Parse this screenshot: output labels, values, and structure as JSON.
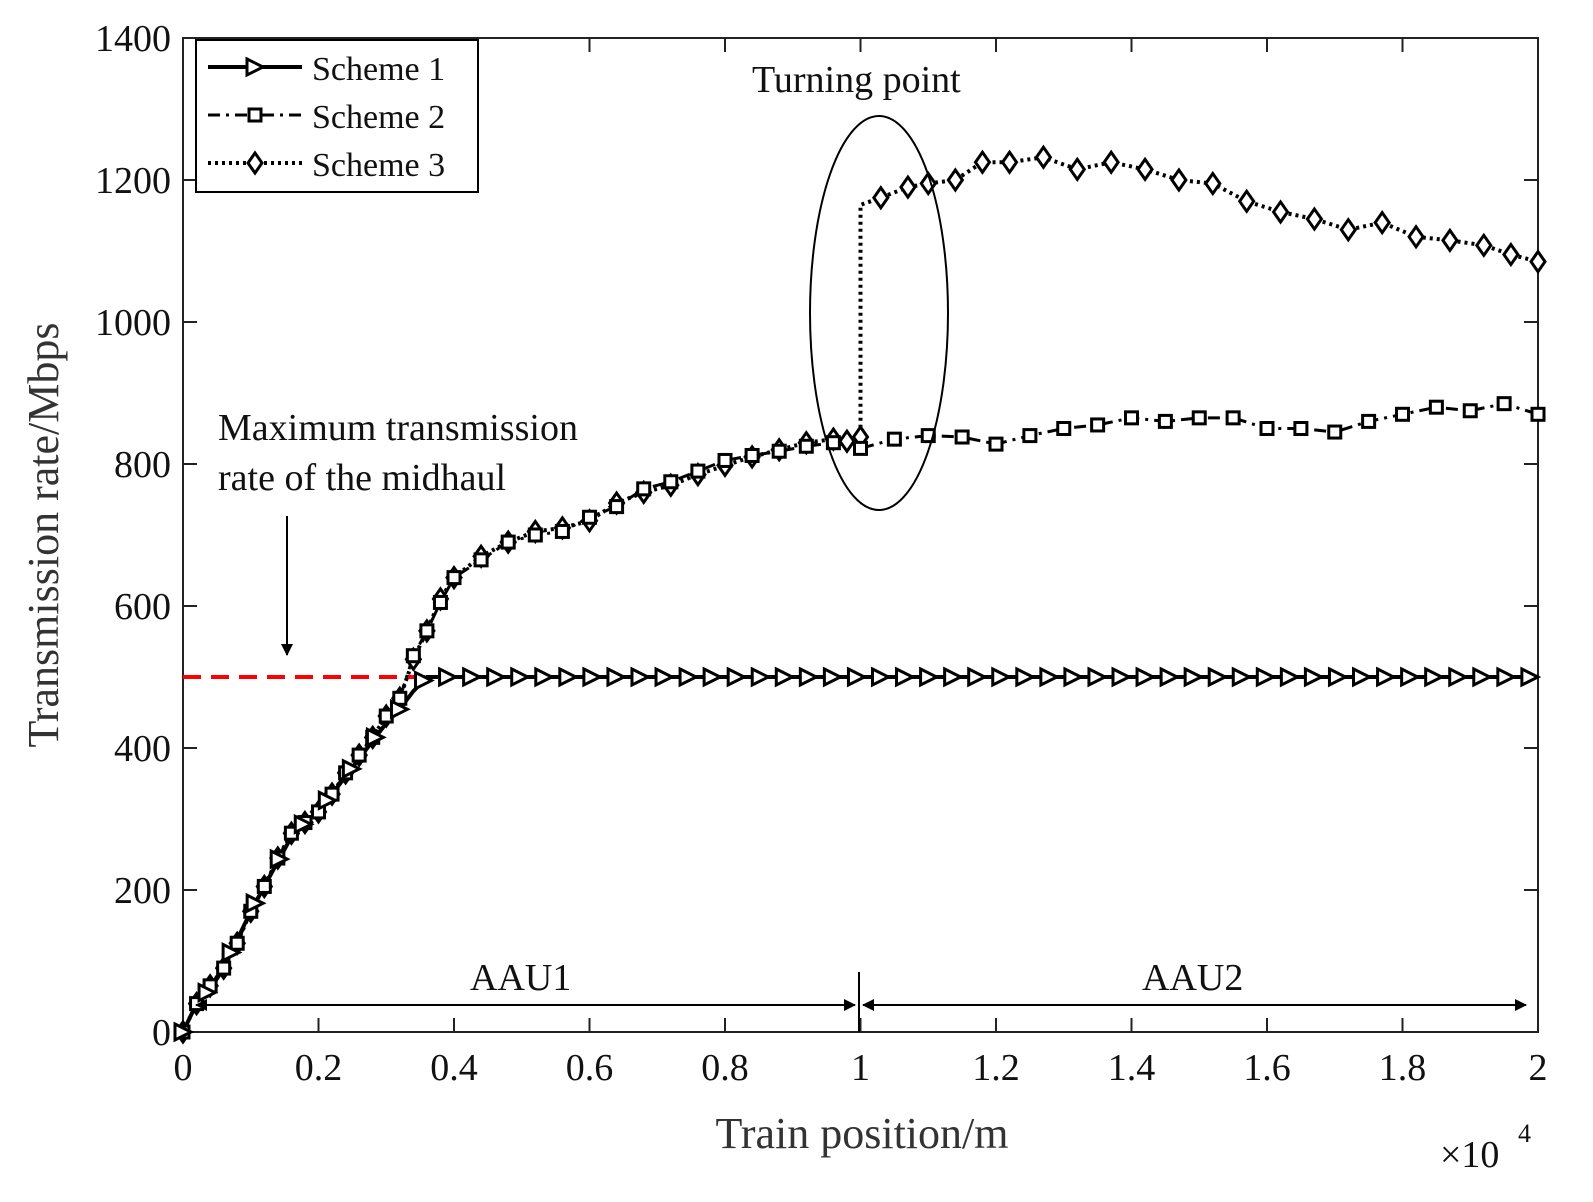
{
  "chart_data": {
    "type": "line",
    "title": "",
    "xlabel": "Train position/m",
    "ylabel": "Transmission rate/Mbps",
    "x_exponent_label": "×10",
    "x_exponent_power": "4",
    "xlim": [
      0,
      2
    ],
    "ylim": [
      0,
      1400
    ],
    "x_scale_note": "x values in units of 10^4 m",
    "x_ticks": [
      0,
      0.2,
      0.4,
      0.6,
      0.8,
      1,
      1.2,
      1.4,
      1.6,
      1.8,
      2
    ],
    "x_tick_labels": [
      "0",
      "0.2",
      "0.4",
      "0.6",
      "0.8",
      "1",
      "1.2",
      "1.4",
      "1.6",
      "1.8",
      "2"
    ],
    "y_ticks": [
      0,
      200,
      400,
      600,
      800,
      1000,
      1200,
      1400
    ],
    "y_tick_labels": [
      "0",
      "200",
      "400",
      "600",
      "800",
      "1000",
      "1200",
      "1400"
    ],
    "grid": false,
    "legend_position": "top-left",
    "series": [
      {
        "name": "Scheme 1",
        "line_style": "solid",
        "marker": "triangle-right",
        "x": [
          0,
          0.02,
          0.04,
          0.06,
          0.08,
          0.1,
          0.12,
          0.14,
          0.16,
          0.18,
          0.2,
          0.22,
          0.24,
          0.26,
          0.28,
          0.3,
          0.32,
          0.34,
          0.36,
          0.38,
          0.4,
          2
        ],
        "y": [
          0,
          40,
          60,
          90,
          130,
          170,
          205,
          240,
          275,
          295,
          310,
          335,
          360,
          385,
          410,
          435,
          455,
          480,
          500,
          500,
          500,
          500
        ]
      },
      {
        "name": "Scheme 2",
        "line_style": "dashed",
        "marker": "square",
        "x": [
          0,
          0.02,
          0.04,
          0.06,
          0.08,
          0.1,
          0.12,
          0.14,
          0.16,
          0.18,
          0.2,
          0.22,
          0.24,
          0.26,
          0.28,
          0.3,
          0.32,
          0.34,
          0.36,
          0.38,
          0.4,
          0.44,
          0.48,
          0.52,
          0.56,
          0.6,
          0.64,
          0.68,
          0.72,
          0.76,
          0.8,
          0.84,
          0.88,
          0.92,
          0.96,
          1.0,
          1.05,
          1.1,
          1.15,
          1.2,
          1.25,
          1.3,
          1.35,
          1.4,
          1.45,
          1.5,
          1.55,
          1.6,
          1.65,
          1.7,
          1.75,
          1.8,
          1.85,
          1.9,
          1.95,
          2.0
        ],
        "y": [
          0,
          40,
          65,
          90,
          125,
          170,
          205,
          245,
          280,
          295,
          310,
          335,
          365,
          390,
          415,
          445,
          470,
          530,
          565,
          605,
          640,
          665,
          690,
          700,
          705,
          725,
          740,
          765,
          775,
          790,
          805,
          812,
          818,
          825,
          830,
          822,
          835,
          840,
          838,
          828,
          840,
          850,
          855,
          865,
          860,
          865,
          865,
          850,
          850,
          845,
          860,
          870,
          880,
          875,
          885,
          870
        ]
      },
      {
        "name": "Scheme 3",
        "line_style": "dotted",
        "marker": "diamond",
        "x": [
          0,
          0.02,
          0.04,
          0.06,
          0.08,
          0.1,
          0.12,
          0.14,
          0.16,
          0.18,
          0.2,
          0.22,
          0.24,
          0.26,
          0.28,
          0.3,
          0.32,
          0.34,
          0.36,
          0.38,
          0.4,
          0.44,
          0.48,
          0.52,
          0.56,
          0.6,
          0.64,
          0.68,
          0.72,
          0.76,
          0.8,
          0.84,
          0.88,
          0.92,
          0.96,
          0.98,
          1.0,
          1.0,
          1.03,
          1.07,
          1.1,
          1.14,
          1.18,
          1.22,
          1.27,
          1.32,
          1.37,
          1.42,
          1.47,
          1.52,
          1.57,
          1.62,
          1.67,
          1.72,
          1.77,
          1.82,
          1.87,
          1.92,
          1.96,
          2.0
        ],
        "y": [
          0,
          40,
          65,
          90,
          125,
          170,
          205,
          245,
          280,
          295,
          310,
          335,
          365,
          390,
          415,
          445,
          470,
          525,
          565,
          610,
          640,
          670,
          690,
          705,
          710,
          720,
          745,
          760,
          770,
          785,
          798,
          810,
          820,
          830,
          835,
          832,
          838,
          1165,
          1175,
          1190,
          1195,
          1200,
          1225,
          1225,
          1232,
          1215,
          1225,
          1215,
          1200,
          1195,
          1170,
          1155,
          1145,
          1130,
          1140,
          1120,
          1115,
          1108,
          1095,
          1085
        ]
      }
    ],
    "reference_line": {
      "name": "Maximum transmission rate of the midhaul",
      "value": 500,
      "color": "#ff0000",
      "line_style": "dashed"
    },
    "annotations": {
      "max_rate_line1": "Maximum transmission",
      "max_rate_line2": "rate of the midhaul",
      "turning_point": "Turning point",
      "aau1": "AAU1",
      "aau2": "AAU2"
    },
    "colors": {
      "series": "#000000",
      "reference": "#ff0000"
    }
  }
}
